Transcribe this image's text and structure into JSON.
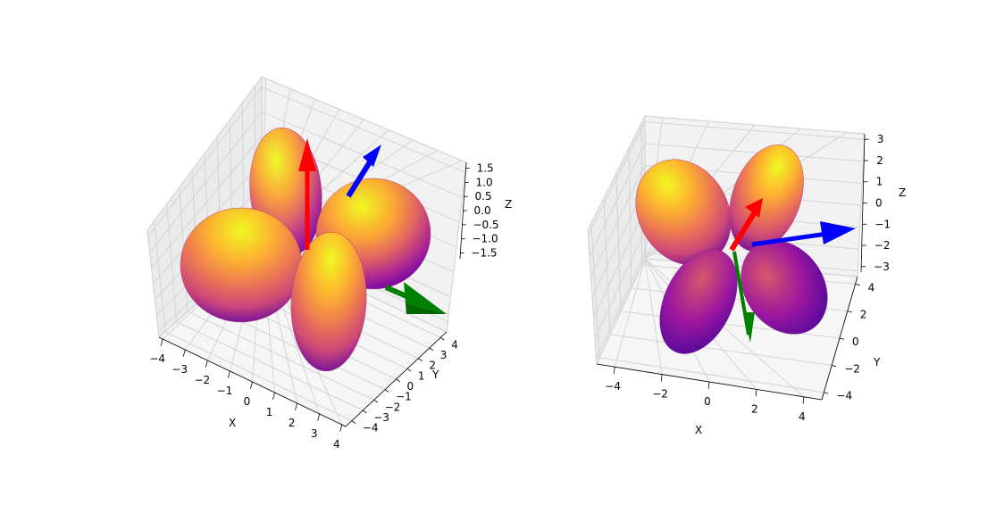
{
  "chart_data": [
    {
      "type": "surface3d",
      "title": "",
      "axes": {
        "x": {
          "label": "X",
          "ticks": [
            "−4",
            "−3",
            "−2",
            "−1",
            "0",
            "1",
            "2",
            "3",
            "4"
          ]
        },
        "y": {
          "label": "Y",
          "ticks": [
            "−4",
            "−3",
            "−2",
            "−1",
            "0",
            "1",
            "2",
            "3",
            "4"
          ]
        },
        "z": {
          "label": "Z",
          "ticks": [
            "−1.5",
            "−1.0",
            "−0.5",
            "0.0",
            "0.5",
            "1.0",
            "1.5"
          ]
        }
      },
      "grid": true,
      "colormap": "plasma",
      "lobes": 4,
      "arrows": [
        {
          "name": "red",
          "color": "#ff0000"
        },
        {
          "name": "green",
          "color": "#008000"
        },
        {
          "name": "blue",
          "color": "#0000ff"
        }
      ]
    },
    {
      "type": "surface3d",
      "title": "",
      "axes": {
        "x": {
          "label": "X",
          "ticks": [
            "−4",
            "−2",
            "0",
            "2",
            "4"
          ]
        },
        "y": {
          "label": "Y",
          "ticks": [
            "−4",
            "−2",
            "0",
            "2",
            "4"
          ]
        },
        "z": {
          "label": "Z",
          "ticks": [
            "−3",
            "−2",
            "−1",
            "0",
            "1",
            "2",
            "3"
          ]
        }
      },
      "grid": true,
      "colormap": "plasma",
      "lobes": 4,
      "arrows": [
        {
          "name": "red",
          "color": "#ff0000"
        },
        {
          "name": "green",
          "color": "#008000"
        },
        {
          "name": "blue",
          "color": "#0000ff"
        }
      ]
    }
  ]
}
